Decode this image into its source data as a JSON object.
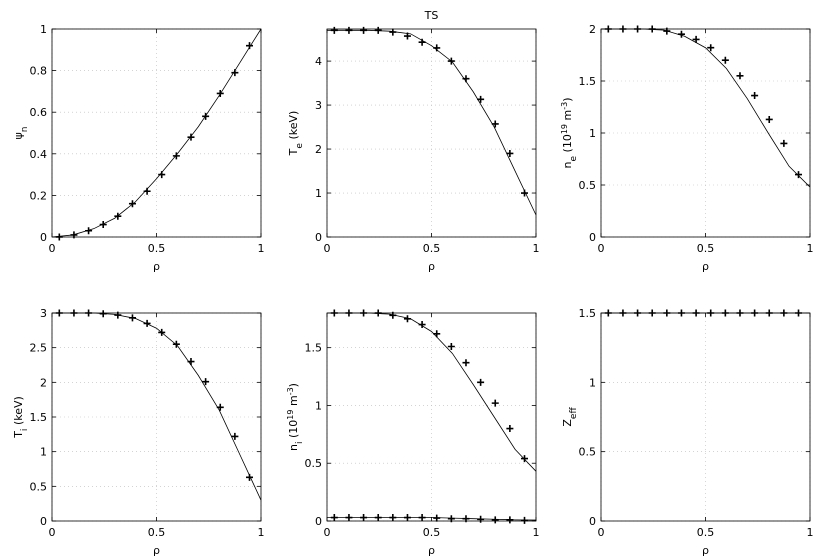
{
  "chart_data": [
    {
      "type": "line",
      "xlabel": "ρ",
      "ylabel": [
        {
          "text": "ψ"
        },
        {
          "text": "n",
          "script": "sub"
        }
      ],
      "xlim": [
        0,
        1
      ],
      "xticks": [
        0,
        0.5,
        1
      ],
      "ylim": [
        0,
        1
      ],
      "yticks": [
        0,
        0.2,
        0.4,
        0.6,
        0.8,
        1
      ],
      "grid": true,
      "series": [
        {
          "color": "#000000",
          "x": [
            0,
            0.1,
            0.2,
            0.3,
            0.4,
            0.5,
            0.6,
            0.7,
            0.8,
            0.9,
            1
          ],
          "values": [
            0,
            0.01,
            0.04,
            0.09,
            0.17,
            0.28,
            0.4,
            0.53,
            0.68,
            0.84,
            1
          ]
        },
        {
          "color": "#000000",
          "marker": "+",
          "x": [
            0.035,
            0.105,
            0.175,
            0.245,
            0.315,
            0.385,
            0.455,
            0.525,
            0.595,
            0.665,
            0.735,
            0.805,
            0.875,
            0.945
          ],
          "values": [
            0,
            0.01,
            0.03,
            0.06,
            0.1,
            0.16,
            0.22,
            0.3,
            0.39,
            0.48,
            0.58,
            0.69,
            0.79,
            0.92
          ]
        }
      ]
    },
    {
      "type": "line",
      "title": "TS",
      "xlabel": "ρ",
      "ylabel": [
        {
          "text": "T"
        },
        {
          "text": "e",
          "script": "sub"
        },
        {
          "text": " (keV)"
        }
      ],
      "xlim": [
        0,
        1
      ],
      "xticks": [
        0,
        0.5,
        1
      ],
      "ylim": [
        0,
        4.73
      ],
      "yticks": [
        0,
        1,
        2,
        3,
        4
      ],
      "grid": true,
      "series": [
        {
          "color": "#000000",
          "x": [
            0,
            0.1,
            0.2,
            0.3,
            0.4,
            0.5,
            0.6,
            0.7,
            0.8,
            0.9,
            1
          ],
          "values": [
            4.7,
            4.7,
            4.7,
            4.68,
            4.62,
            4.35,
            3.98,
            3.3,
            2.5,
            1.5,
            0.5
          ]
        },
        {
          "color": "#000000",
          "marker": "+",
          "x": [
            0.035,
            0.105,
            0.175,
            0.245,
            0.315,
            0.385,
            0.455,
            0.525,
            0.595,
            0.665,
            0.735,
            0.805,
            0.875,
            0.945
          ],
          "values": [
            4.7,
            4.7,
            4.7,
            4.7,
            4.66,
            4.57,
            4.43,
            4.3,
            4.0,
            3.6,
            3.13,
            2.57,
            1.9,
            1.0
          ]
        }
      ]
    },
    {
      "type": "line",
      "xlabel": "ρ",
      "ylabel": [
        {
          "text": "n"
        },
        {
          "text": "e",
          "script": "sub"
        },
        {
          "text": " (10"
        },
        {
          "text": "19",
          "script": "super"
        },
        {
          "text": " m"
        },
        {
          "text": "-3",
          "script": "super"
        },
        {
          "text": ")"
        }
      ],
      "xlim": [
        0,
        1
      ],
      "xticks": [
        0,
        0.5,
        1
      ],
      "ylim": [
        0,
        2
      ],
      "yticks": [
        0,
        0.5,
        1,
        1.5,
        2
      ],
      "grid": true,
      "series": [
        {
          "color": "#000000",
          "x": [
            0,
            0.1,
            0.2,
            0.3,
            0.4,
            0.5,
            0.6,
            0.7,
            0.8,
            0.9,
            1
          ],
          "values": [
            2,
            2,
            2,
            1.99,
            1.93,
            1.82,
            1.62,
            1.33,
            1.0,
            0.68,
            0.48
          ]
        },
        {
          "color": "#000000",
          "marker": "+",
          "x": [
            0.035,
            0.105,
            0.175,
            0.245,
            0.315,
            0.385,
            0.455,
            0.525,
            0.595,
            0.665,
            0.735,
            0.805,
            0.875,
            0.945
          ],
          "values": [
            2,
            2,
            2,
            2,
            1.98,
            1.95,
            1.9,
            1.82,
            1.7,
            1.55,
            1.36,
            1.13,
            0.9,
            0.6
          ]
        }
      ]
    },
    {
      "type": "line",
      "xlabel": "ρ",
      "ylabel": [
        {
          "text": "T"
        },
        {
          "text": "i",
          "script": "sub"
        },
        {
          "text": " (keV)"
        }
      ],
      "xlim": [
        0,
        1
      ],
      "xticks": [
        0,
        0.5,
        1
      ],
      "ylim": [
        0,
        3
      ],
      "yticks": [
        0,
        0.5,
        1,
        1.5,
        2,
        2.5,
        3
      ],
      "grid": true,
      "series": [
        {
          "color": "#000000",
          "x": [
            0,
            0.1,
            0.2,
            0.3,
            0.4,
            0.5,
            0.6,
            0.7,
            0.8,
            0.9,
            1
          ],
          "values": [
            3,
            3,
            3,
            2.98,
            2.92,
            2.78,
            2.53,
            2.1,
            1.6,
            0.95,
            0.3
          ]
        },
        {
          "color": "#000000",
          "marker": "+",
          "x": [
            0.035,
            0.105,
            0.175,
            0.245,
            0.315,
            0.385,
            0.455,
            0.525,
            0.595,
            0.665,
            0.735,
            0.805,
            0.875,
            0.945
          ],
          "values": [
            3,
            3,
            3,
            2.99,
            2.97,
            2.93,
            2.85,
            2.72,
            2.55,
            2.3,
            2.01,
            1.64,
            1.22,
            0.63
          ]
        }
      ]
    },
    {
      "type": "line",
      "xlabel": "ρ",
      "ylabel": [
        {
          "text": "n"
        },
        {
          "text": "i",
          "script": "sub"
        },
        {
          "text": " (10"
        },
        {
          "text": "19",
          "script": "super"
        },
        {
          "text": " m"
        },
        {
          "text": "-3",
          "script": "super"
        },
        {
          "text": ")"
        }
      ],
      "xlim": [
        0,
        1
      ],
      "xticks": [
        0,
        0.5,
        1
      ],
      "ylim": [
        0,
        1.8
      ],
      "yticks": [
        0,
        0.5,
        1,
        1.5
      ],
      "grid": true,
      "series": [
        {
          "color": "#000000",
          "x": [
            0,
            0.1,
            0.2,
            0.3,
            0.4,
            0.5,
            0.6,
            0.7,
            0.8,
            0.9,
            1
          ],
          "values": [
            1.8,
            1.8,
            1.8,
            1.79,
            1.75,
            1.64,
            1.45,
            1.18,
            0.9,
            0.62,
            0.43
          ]
        },
        {
          "color": "#000000",
          "marker": "+",
          "x": [
            0.035,
            0.105,
            0.175,
            0.245,
            0.315,
            0.385,
            0.455,
            0.525,
            0.595,
            0.665,
            0.735,
            0.805,
            0.875,
            0.945
          ],
          "values": [
            1.8,
            1.8,
            1.8,
            1.8,
            1.78,
            1.75,
            1.7,
            1.62,
            1.51,
            1.37,
            1.2,
            1.02,
            0.8,
            0.54
          ]
        },
        {
          "color": "#000000",
          "x": [
            0,
            0.1,
            0.2,
            0.3,
            0.4,
            0.5,
            0.6,
            0.7,
            0.8,
            0.9,
            1
          ],
          "values": [
            0.03,
            0.03,
            0.03,
            0.03,
            0.03,
            0.03,
            0.025,
            0.02,
            0.015,
            0.01,
            0.008
          ]
        },
        {
          "color": "#000000",
          "marker": "+",
          "x": [
            0.035,
            0.105,
            0.175,
            0.245,
            0.315,
            0.385,
            0.455,
            0.525,
            0.595,
            0.665,
            0.735,
            0.805,
            0.875,
            0.945
          ],
          "values": [
            0.03,
            0.03,
            0.03,
            0.03,
            0.03,
            0.03,
            0.03,
            0.025,
            0.02,
            0.02,
            0.015,
            0.01,
            0.01,
            0.005
          ]
        }
      ]
    },
    {
      "type": "line",
      "xlabel": "ρ",
      "ylabel": [
        {
          "text": "Z"
        },
        {
          "text": "eff",
          "script": "sub"
        }
      ],
      "xlim": [
        0,
        1
      ],
      "xticks": [
        0,
        0.5,
        1
      ],
      "ylim": [
        0,
        1.5
      ],
      "yticks": [
        0,
        0.5,
        1,
        1.5
      ],
      "grid": true,
      "series": [
        {
          "color": "#000000",
          "x": [
            0,
            1
          ],
          "values": [
            1.5,
            1.5
          ]
        },
        {
          "color": "#000000",
          "marker": "+",
          "x": [
            0.035,
            0.105,
            0.175,
            0.245,
            0.315,
            0.385,
            0.455,
            0.525,
            0.595,
            0.665,
            0.735,
            0.805,
            0.875,
            0.945
          ],
          "values": [
            1.5,
            1.5,
            1.5,
            1.5,
            1.5,
            1.5,
            1.5,
            1.5,
            1.5,
            1.5,
            1.5,
            1.5,
            1.5,
            1.5
          ]
        }
      ]
    }
  ]
}
